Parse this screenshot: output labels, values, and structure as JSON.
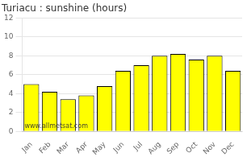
{
  "chart_data": {
    "type": "bar",
    "title": "Turiacu : sunshine (hours)",
    "categories": [
      "Jan",
      "Feb",
      "Mar",
      "Apr",
      "May",
      "Jun",
      "Jul",
      "Aug",
      "Sep",
      "Oct",
      "Nov",
      "Dec"
    ],
    "values": [
      5.0,
      4.2,
      3.4,
      3.8,
      4.8,
      6.4,
      7.0,
      8.0,
      8.2,
      7.6,
      8.0,
      6.4
    ],
    "color": "#ffff00",
    "ylim": [
      0,
      12
    ],
    "yticks": [
      0,
      2,
      4,
      6,
      8,
      10,
      12
    ],
    "grid": true,
    "annotation": "www.allmetsat.com"
  }
}
